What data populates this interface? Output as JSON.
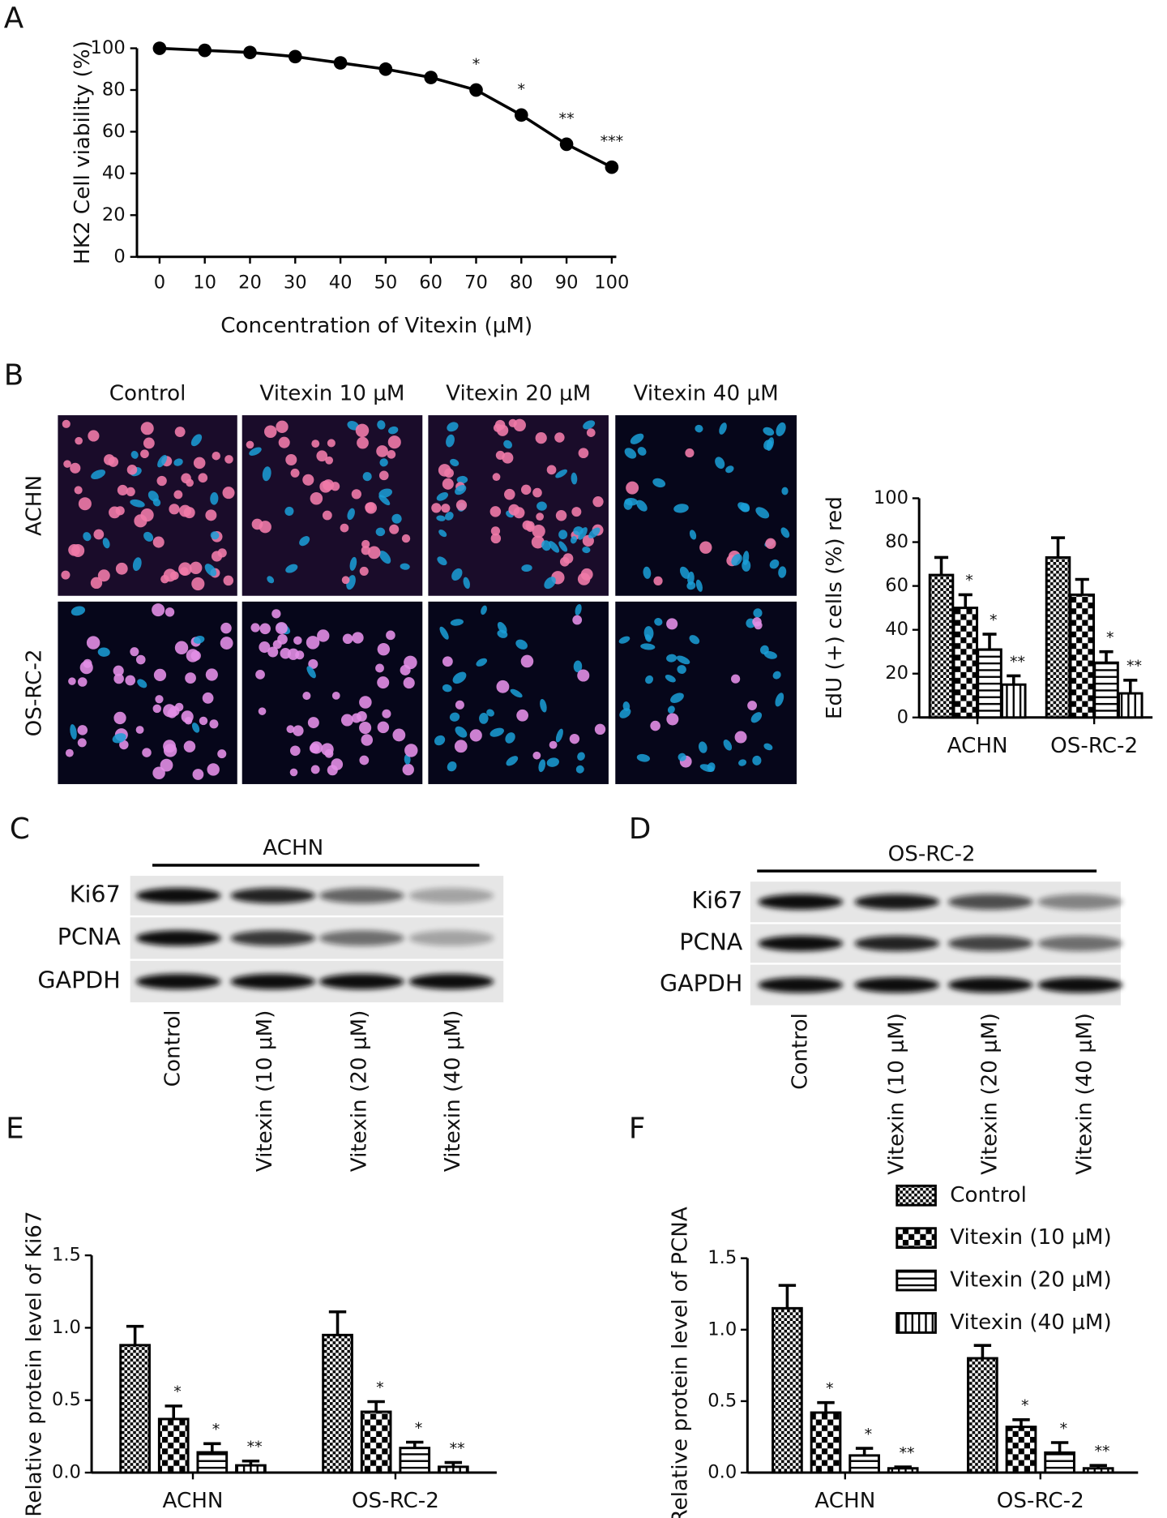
{
  "figure": {
    "panels": [
      "A",
      "B",
      "C",
      "D",
      "E",
      "F"
    ]
  },
  "micrographs": {
    "columns": [
      "Control",
      "Vitexin 10 μM",
      "Vitexin 20 μM",
      "Vitexin 40 μM"
    ],
    "rows": [
      "ACHN",
      "OS-RC-2"
    ]
  },
  "blots": [
    {
      "title": "ACHN",
      "rows": [
        "Ki67",
        "PCNA",
        "GAPDH"
      ],
      "lanes": [
        "Control",
        "Vitexin (10 μM)",
        "Vitexin (20 μM)",
        "Vitexin (40 μM)"
      ]
    },
    {
      "title": "OS-RC-2",
      "rows": [
        "Ki67",
        "PCNA",
        "GAPDH"
      ],
      "lanes": [
        "Control",
        "Vitexin (10 μM)",
        "Vitexin (20 μM)",
        "Vitexin (40 μM)"
      ]
    }
  ],
  "chart_data": [
    {
      "type": "line",
      "xlabel": "Concentration of Vitexin (μM)",
      "ylabel": "HK2 Cell viability (%)",
      "x": [
        0,
        10,
        20,
        30,
        40,
        50,
        60,
        70,
        80,
        90,
        100
      ],
      "values": [
        100,
        99,
        98,
        96,
        93,
        90,
        86,
        80,
        68,
        54,
        43
      ],
      "significance": [
        null,
        null,
        null,
        null,
        null,
        null,
        null,
        "*",
        "*",
        "**",
        "***"
      ],
      "color": "#000000",
      "xlim": [
        -5,
        101
      ],
      "ylim": [
        0,
        100
      ],
      "xticks": [
        0,
        10,
        20,
        30,
        40,
        50,
        60,
        70,
        80,
        90,
        100
      ],
      "yticks": [
        0,
        20,
        40,
        60,
        80,
        100
      ]
    },
    {
      "type": "bar",
      "ylabel": "EdU (+) cells (%) red",
      "categories": [
        "ACHN",
        "OS-RC-2"
      ],
      "series": [
        {
          "color": "#000000",
          "pattern": "checker-fine",
          "values": [
            65,
            73
          ],
          "error": [
            8,
            9
          ],
          "significance": [
            null,
            null
          ]
        },
        {
          "color": "#000000",
          "pattern": "checker-coarse",
          "values": [
            50,
            56
          ],
          "error": [
            6,
            7
          ],
          "significance": [
            "*",
            null
          ]
        },
        {
          "color": "#000000",
          "pattern": "hlines",
          "values": [
            31,
            25
          ],
          "error": [
            7,
            5
          ],
          "significance": [
            "*",
            "*"
          ]
        },
        {
          "color": "#000000",
          "pattern": "vlines",
          "values": [
            15,
            11
          ],
          "error": [
            4,
            6
          ],
          "significance": [
            "**",
            "**"
          ]
        }
      ],
      "ylim": [
        0,
        100
      ],
      "yticks": [
        0,
        20,
        40,
        60,
        80,
        100
      ]
    },
    {
      "type": "bar",
      "ylabel": "Relative protein level of Ki67",
      "categories": [
        "ACHN",
        "OS-RC-2"
      ],
      "series": [
        {
          "color": "#000000",
          "pattern": "checker-fine",
          "values": [
            0.88,
            0.95
          ],
          "error": [
            0.13,
            0.16
          ],
          "significance": [
            null,
            null
          ]
        },
        {
          "color": "#000000",
          "pattern": "checker-coarse",
          "values": [
            0.37,
            0.42
          ],
          "error": [
            0.09,
            0.07
          ],
          "significance": [
            "*",
            "*"
          ]
        },
        {
          "color": "#000000",
          "pattern": "hlines",
          "values": [
            0.14,
            0.17
          ],
          "error": [
            0.06,
            0.04
          ],
          "significance": [
            "*",
            "*"
          ]
        },
        {
          "color": "#000000",
          "pattern": "vlines",
          "values": [
            0.05,
            0.04
          ],
          "error": [
            0.03,
            0.03
          ],
          "significance": [
            "**",
            "**"
          ]
        }
      ],
      "ylim": [
        0,
        1.5
      ],
      "yticks": [
        {
          "value": 0,
          "label": "0.0"
        },
        0.5,
        {
          "value": 1,
          "label": "1.0"
        },
        1.5
      ]
    },
    {
      "type": "bar",
      "ylabel": "Relative protein level of PCNA",
      "categories": [
        "ACHN",
        "OS-RC-2"
      ],
      "legend": "upper right",
      "series": [
        {
          "name": "Control",
          "color": "#000000",
          "pattern": "checker-fine",
          "values": [
            1.15,
            0.8
          ],
          "error": [
            0.16,
            0.09
          ],
          "significance": [
            null,
            null
          ]
        },
        {
          "name": "Vitexin (10 μM)",
          "color": "#000000",
          "pattern": "checker-coarse",
          "values": [
            0.42,
            0.32
          ],
          "error": [
            0.07,
            0.05
          ],
          "significance": [
            "*",
            "*"
          ]
        },
        {
          "name": "Vitexin (20 μM)",
          "color": "#000000",
          "pattern": "hlines",
          "values": [
            0.12,
            0.14
          ],
          "error": [
            0.05,
            0.07
          ],
          "significance": [
            "*",
            "*"
          ]
        },
        {
          "name": "Vitexin (40 μM)",
          "color": "#000000",
          "pattern": "vlines",
          "values": [
            0.03,
            0.03
          ],
          "error": [
            0.01,
            0.02
          ],
          "significance": [
            "**",
            "**"
          ]
        }
      ],
      "ylim": [
        0,
        1.5
      ],
      "yticks": [
        {
          "value": 0,
          "label": "0.0"
        },
        0.5,
        {
          "value": 1,
          "label": "1.0"
        },
        1.5
      ]
    }
  ]
}
